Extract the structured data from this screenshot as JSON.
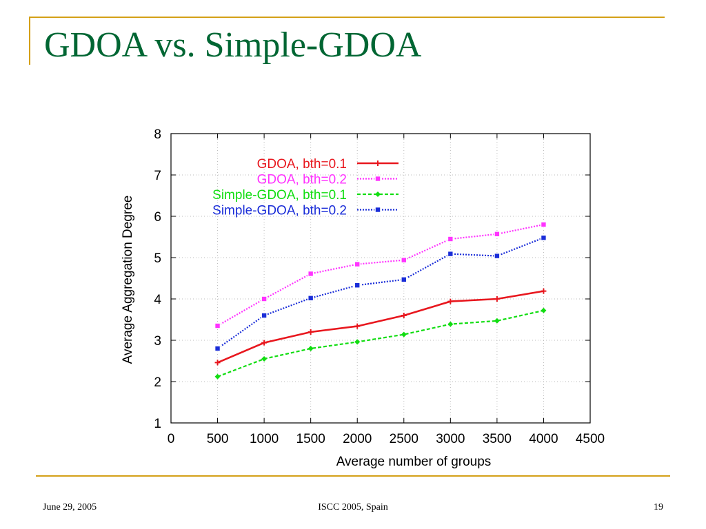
{
  "slide": {
    "title": "GDOA vs. Simple-GDOA",
    "footer_left": "June 29, 2005",
    "footer_center": "ISCC 2005, Spain",
    "footer_right": "19"
  },
  "chart_data": {
    "type": "line",
    "xlabel": "Average number of groups",
    "ylabel": "Average Aggregation Degree",
    "xlim": [
      0,
      4500
    ],
    "ylim": [
      1,
      8
    ],
    "x_ticks": [
      "0",
      "500",
      "1000",
      "1500",
      "2000",
      "2500",
      "3000",
      "3500",
      "4000",
      "4500"
    ],
    "y_ticks": [
      "1",
      "2",
      "3",
      "4",
      "5",
      "6",
      "7",
      "8"
    ],
    "grid": true,
    "legend_position": "top-right",
    "x": [
      500,
      1000,
      1500,
      2000,
      2500,
      3000,
      3500,
      4000
    ],
    "series": [
      {
        "name": "GDOA, bth=0.1",
        "color": "#e8171e",
        "line_style": "solid",
        "marker": "plus",
        "values": [
          2.46,
          2.94,
          3.2,
          3.34,
          3.6,
          3.94,
          4.0,
          4.19
        ]
      },
      {
        "name": "GDOA, bth=0.2",
        "color": "#ff33ff",
        "line_style": "dotted",
        "marker": "square",
        "values": [
          3.35,
          4.0,
          4.61,
          4.84,
          4.94,
          5.45,
          5.57,
          5.8
        ]
      },
      {
        "name": "Simple-GDOA, bth=0.1",
        "color": "#11dd11",
        "line_style": "dashed",
        "marker": "diamond",
        "values": [
          2.12,
          2.55,
          2.8,
          2.96,
          3.14,
          3.39,
          3.47,
          3.72
        ]
      },
      {
        "name": "Simple-GDOA, bth=0.2",
        "color": "#1a2dd8",
        "line_style": "dotted",
        "marker": "square",
        "values": [
          2.8,
          3.6,
          4.02,
          4.33,
          4.47,
          5.09,
          5.04,
          5.48
        ]
      }
    ]
  }
}
